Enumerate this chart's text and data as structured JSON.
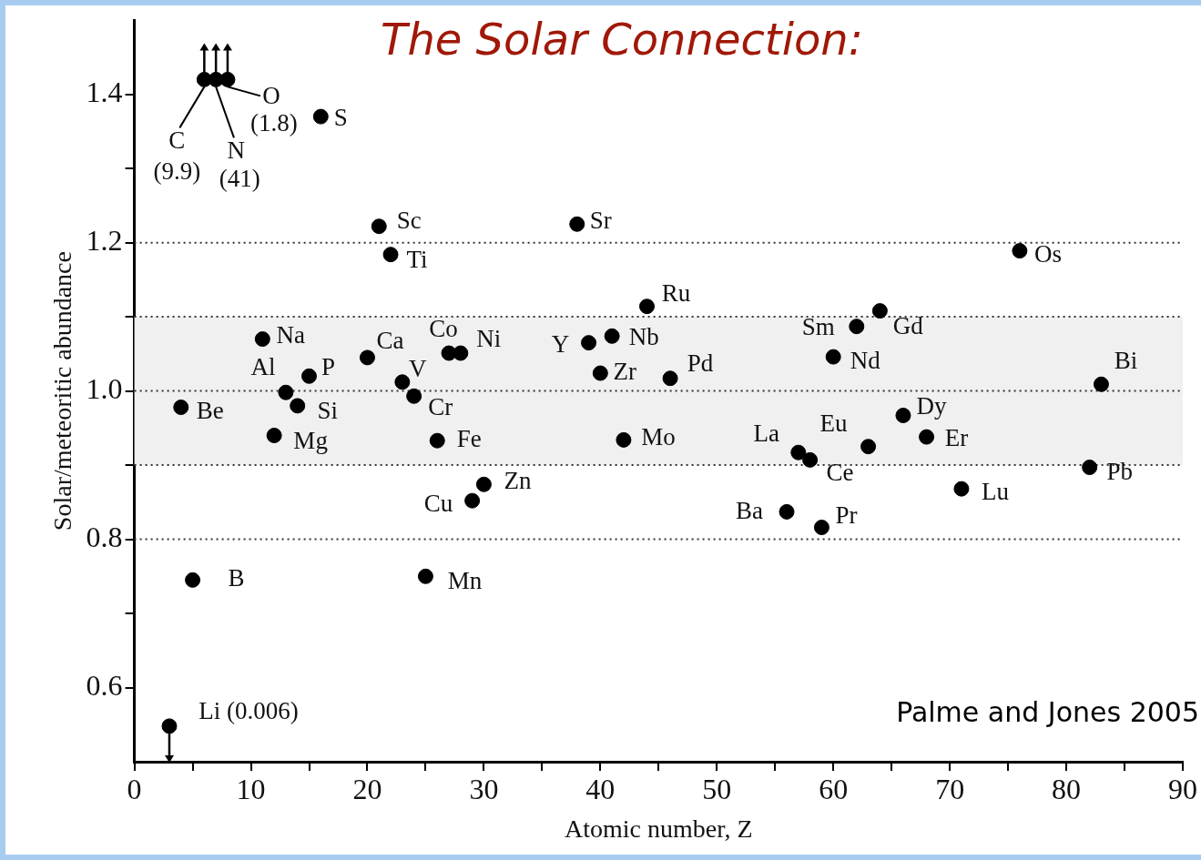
{
  "chart_data": {
    "type": "scatter",
    "title": "The Solar Connection:",
    "xlabel": "Atomic number, Z",
    "ylabel": "Solar/meteoritic abundance",
    "x": [
      3,
      4,
      5,
      6,
      7,
      8,
      11,
      12,
      13,
      14,
      15,
      16,
      20,
      21,
      22,
      23,
      24,
      25,
      26,
      27,
      28,
      29,
      30,
      38,
      39,
      40,
      41,
      42,
      44,
      46,
      56,
      57,
      58,
      59,
      60,
      62,
      63,
      64,
      66,
      68,
      71,
      76,
      82,
      83
    ],
    "series": [
      {
        "color": "#000000",
        "values": [
          0.548,
          0.978,
          0.745,
          1.42,
          1.42,
          1.42,
          1.07,
          0.94,
          0.998,
          0.98,
          1.02,
          1.37,
          1.045,
          1.222,
          1.184,
          1.012,
          0.993,
          0.75,
          0.933,
          1.051,
          1.051,
          0.852,
          0.874,
          1.225,
          1.065,
          1.024,
          1.074,
          0.934,
          1.114,
          1.017,
          0.837,
          0.917,
          0.907,
          0.816,
          1.046,
          1.087,
          0.925,
          1.108,
          0.967,
          0.938,
          0.868,
          1.189,
          0.897,
          1.009
        ]
      }
    ],
    "xlim": [
      0,
      90
    ],
    "xticks": [
      0,
      {
        "value": 5,
        "label": null
      },
      10,
      {
        "value": 15,
        "label": null
      },
      20,
      {
        "value": 25,
        "label": null
      },
      30,
      {
        "value": 35,
        "label": null
      },
      40,
      {
        "value": 45,
        "label": null
      },
      50,
      {
        "value": 55,
        "label": null
      },
      60,
      {
        "value": 65,
        "label": null
      },
      70,
      {
        "value": 75,
        "label": null
      },
      80,
      {
        "value": 85,
        "label": null
      },
      90
    ],
    "ylim": [
      0.5,
      1.5
    ],
    "yticks": [
      {
        "value": 0.6,
        "label": "0.6"
      },
      {
        "value": 0.7,
        "label": null
      },
      {
        "value": 0.8,
        "label": "0.8"
      },
      {
        "value": 0.9,
        "label": null
      },
      {
        "value": 1.0,
        "label": "1.0"
      },
      {
        "value": 1.1,
        "label": null
      },
      {
        "value": 1.2,
        "label": "1.2"
      },
      {
        "value": 1.3,
        "label": null
      },
      {
        "value": 1.4,
        "label": "1.4"
      }
    ],
    "grid": false,
    "legend": false,
    "marker": "circle",
    "bands": [
      {
        "axis": "y",
        "from": 0.9,
        "to": 1.1,
        "color": "#f0f0f0"
      }
    ],
    "ref_lines": [
      {
        "axis": "y",
        "value": 1.2,
        "color": "#333333",
        "line_style": "dotted"
      },
      {
        "axis": "y",
        "value": 1.1,
        "color": "#333333",
        "line_style": "dotted"
      },
      {
        "axis": "y",
        "value": 1.0,
        "color": "#333333",
        "line_style": "dotted"
      },
      {
        "axis": "y",
        "value": 0.9,
        "color": "#333333",
        "line_style": "dotted"
      },
      {
        "axis": "y",
        "value": 0.8,
        "color": "#333333",
        "line_style": "dotted"
      }
    ],
    "annotations": [
      {
        "text": "Li (0.006)",
        "x": 3,
        "y": 0.548
      },
      {
        "text": "Be",
        "x": 4,
        "y": 0.978
      },
      {
        "text": "B",
        "x": 5,
        "y": 0.745
      },
      {
        "text": "C",
        "x": 6,
        "y": 1.42
      },
      {
        "text": "(9.9)",
        "x": 6,
        "y": 1.42
      },
      {
        "text": "N",
        "x": 7,
        "y": 1.42
      },
      {
        "text": "(41)",
        "x": 7,
        "y": 1.42
      },
      {
        "text": "O",
        "x": 8,
        "y": 1.42
      },
      {
        "text": "(1.8)",
        "x": 8,
        "y": 1.42
      },
      {
        "text": "Na",
        "x": 11,
        "y": 1.07
      },
      {
        "text": "Mg",
        "x": 12,
        "y": 0.94
      },
      {
        "text": "Al",
        "x": 13,
        "y": 0.998
      },
      {
        "text": "Si",
        "x": 14,
        "y": 0.98
      },
      {
        "text": "P",
        "x": 15,
        "y": 1.02
      },
      {
        "text": "S",
        "x": 16,
        "y": 1.37
      },
      {
        "text": "Ca",
        "x": 20,
        "y": 1.045
      },
      {
        "text": "Sc",
        "x": 21,
        "y": 1.222
      },
      {
        "text": "Ti",
        "x": 22,
        "y": 1.184
      },
      {
        "text": "V",
        "x": 23,
        "y": 1.012
      },
      {
        "text": "Cr",
        "x": 24,
        "y": 0.993
      },
      {
        "text": "Mn",
        "x": 25,
        "y": 0.75
      },
      {
        "text": "Fe",
        "x": 26,
        "y": 0.933
      },
      {
        "text": "Co",
        "x": 27,
        "y": 1.051
      },
      {
        "text": "Ni",
        "x": 28,
        "y": 1.051
      },
      {
        "text": "Cu",
        "x": 29,
        "y": 0.852
      },
      {
        "text": "Zn",
        "x": 30,
        "y": 0.874
      },
      {
        "text": "Sr",
        "x": 38,
        "y": 1.225
      },
      {
        "text": "Y",
        "x": 39,
        "y": 1.065
      },
      {
        "text": "Zr",
        "x": 40,
        "y": 1.024
      },
      {
        "text": "Nb",
        "x": 41,
        "y": 1.074
      },
      {
        "text": "Mo",
        "x": 42,
        "y": 0.934
      },
      {
        "text": "Ru",
        "x": 44,
        "y": 1.114
      },
      {
        "text": "Pd",
        "x": 46,
        "y": 1.017
      },
      {
        "text": "Ba",
        "x": 56,
        "y": 0.837
      },
      {
        "text": "La",
        "x": 57,
        "y": 0.917
      },
      {
        "text": "Ce",
        "x": 58,
        "y": 0.907
      },
      {
        "text": "Pr",
        "x": 59,
        "y": 0.816
      },
      {
        "text": "Nd",
        "x": 60,
        "y": 1.046
      },
      {
        "text": "Sm",
        "x": 62,
        "y": 1.087
      },
      {
        "text": "Eu",
        "x": 63,
        "y": 0.925
      },
      {
        "text": "Gd",
        "x": 64,
        "y": 1.108
      },
      {
        "text": "Dy",
        "x": 66,
        "y": 0.967
      },
      {
        "text": "Er",
        "x": 68,
        "y": 0.938
      },
      {
        "text": "Lu",
        "x": 71,
        "y": 0.868
      },
      {
        "text": "Os",
        "x": 76,
        "y": 1.189
      },
      {
        "text": "Pb",
        "x": 82,
        "y": 0.897
      },
      {
        "text": "Bi",
        "x": 83,
        "y": 1.009
      },
      "Palme and Jones 2005"
    ]
  }
}
